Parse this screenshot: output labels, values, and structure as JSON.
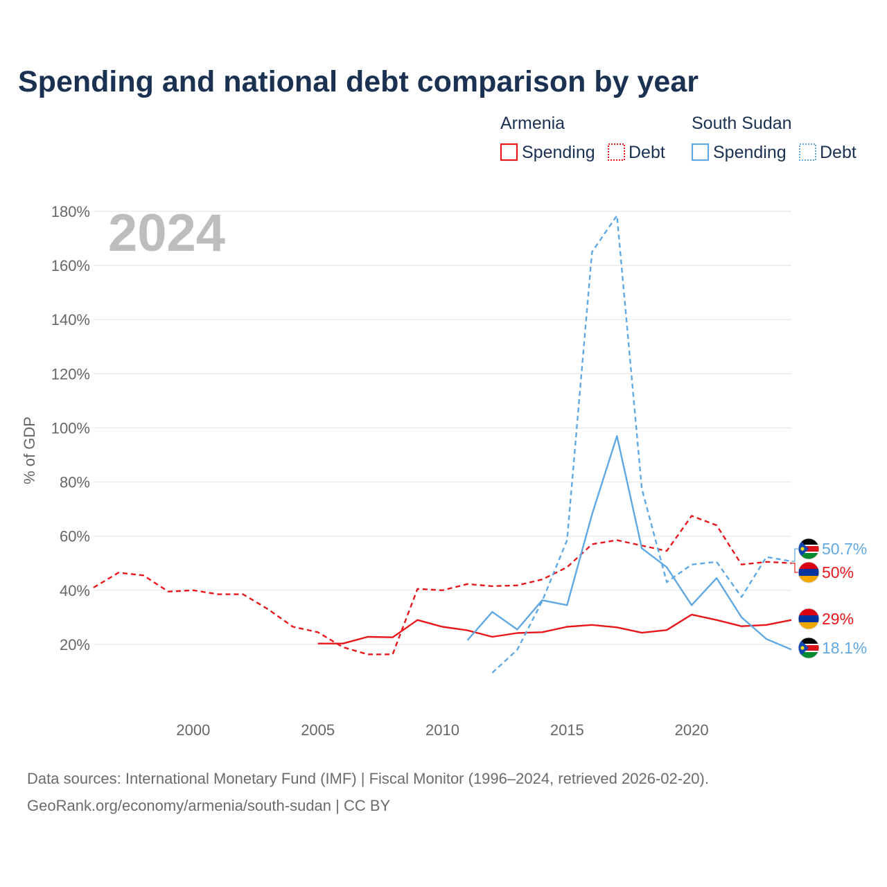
{
  "title": "Spending and national debt comparison by year",
  "legend": {
    "groups": [
      {
        "name": "Armenia",
        "color": "#e8161b",
        "items": [
          "Spending",
          "Debt"
        ]
      },
      {
        "name": "South Sudan",
        "color": "#5fa8e3",
        "items": [
          "Spending",
          "Debt"
        ]
      }
    ]
  },
  "year_watermark": "2024",
  "footer": {
    "line1": "Data sources: International Monetary Fund (IMF) | Fiscal Monitor (1996–2024, retrieved 2026-02-20).",
    "line2": "GeoRank.org/economy/armenia/south-sudan | CC BY"
  },
  "chart_data": {
    "type": "line",
    "title": "Spending and national debt comparison by year",
    "xlabel": "",
    "ylabel": "% of GDP",
    "xlim": [
      1996,
      2024
    ],
    "ylim": [
      0,
      180
    ],
    "xticks": [
      2000,
      2005,
      2010,
      2015,
      2020
    ],
    "yticks": [
      20,
      40,
      60,
      80,
      100,
      120,
      140,
      160,
      180
    ],
    "ytick_labels": [
      "20%",
      "40%",
      "60%",
      "80%",
      "100%",
      "120%",
      "140%",
      "160%",
      "180%"
    ],
    "grid": true,
    "series": [
      {
        "name": "Armenia Debt",
        "country": "Armenia",
        "metric": "Debt",
        "color": "#e8161b",
        "dashed": true,
        "x": [
          1996,
          1997,
          1998,
          1999,
          2000,
          2001,
          2002,
          2003,
          2004,
          2005,
          2006,
          2007,
          2008,
          2009,
          2010,
          2011,
          2012,
          2013,
          2014,
          2015,
          2016,
          2017,
          2018,
          2019,
          2020,
          2021,
          2022,
          2023,
          2024
        ],
        "values": [
          41,
          46.5,
          45.5,
          39.5,
          40,
          38.5,
          38.5,
          33,
          26.5,
          24.5,
          19,
          16.3,
          16.3,
          40.5,
          40,
          42.3,
          41.5,
          41.8,
          44,
          48.5,
          57,
          58.5,
          56.5,
          54.5,
          67.5,
          64,
          49.5,
          50.5,
          50
        ]
      },
      {
        "name": "Armenia Spending",
        "country": "Armenia",
        "metric": "Spending",
        "color": "#e8161b",
        "dashed": false,
        "x": [
          2005,
          2006,
          2007,
          2008,
          2009,
          2010,
          2011,
          2012,
          2013,
          2014,
          2015,
          2016,
          2017,
          2018,
          2019,
          2020,
          2021,
          2022,
          2023,
          2024
        ],
        "values": [
          20.3,
          20.3,
          22.8,
          22.6,
          29,
          26.5,
          25.2,
          22.8,
          24.2,
          24.5,
          26.5,
          27.2,
          26.3,
          24.3,
          25.3,
          31,
          29,
          26.7,
          27.2,
          29
        ]
      },
      {
        "name": "South Sudan Debt",
        "country": "South Sudan",
        "metric": "Debt",
        "color": "#5fa8e3",
        "dashed": true,
        "x": [
          2012,
          2013,
          2014,
          2015,
          2016,
          2017,
          2018,
          2019,
          2020,
          2021,
          2022,
          2023,
          2024
        ],
        "values": [
          9.5,
          18,
          36,
          58.5,
          165,
          178.5,
          77.5,
          43,
          49.5,
          50.5,
          37.5,
          52.3,
          50.7
        ]
      },
      {
        "name": "South Sudan Spending",
        "country": "South Sudan",
        "metric": "Spending",
        "color": "#5fa8e3",
        "dashed": false,
        "x": [
          2011,
          2012,
          2013,
          2014,
          2015,
          2016,
          2017,
          2018,
          2019,
          2020,
          2021,
          2022,
          2023,
          2024
        ],
        "values": [
          21.5,
          32,
          25.5,
          36.3,
          34.5,
          68,
          97,
          55.5,
          48.5,
          34.5,
          44.5,
          30,
          22,
          18.1
        ]
      }
    ],
    "end_labels": [
      {
        "series": "South Sudan Debt",
        "text": "50.7%",
        "country": "South Sudan"
      },
      {
        "series": "Armenia Debt",
        "text": "50%",
        "country": "Armenia"
      },
      {
        "series": "Armenia Spending",
        "text": "29%",
        "country": "Armenia"
      },
      {
        "series": "South Sudan Spending",
        "text": "18.1%",
        "country": "South Sudan"
      }
    ]
  }
}
